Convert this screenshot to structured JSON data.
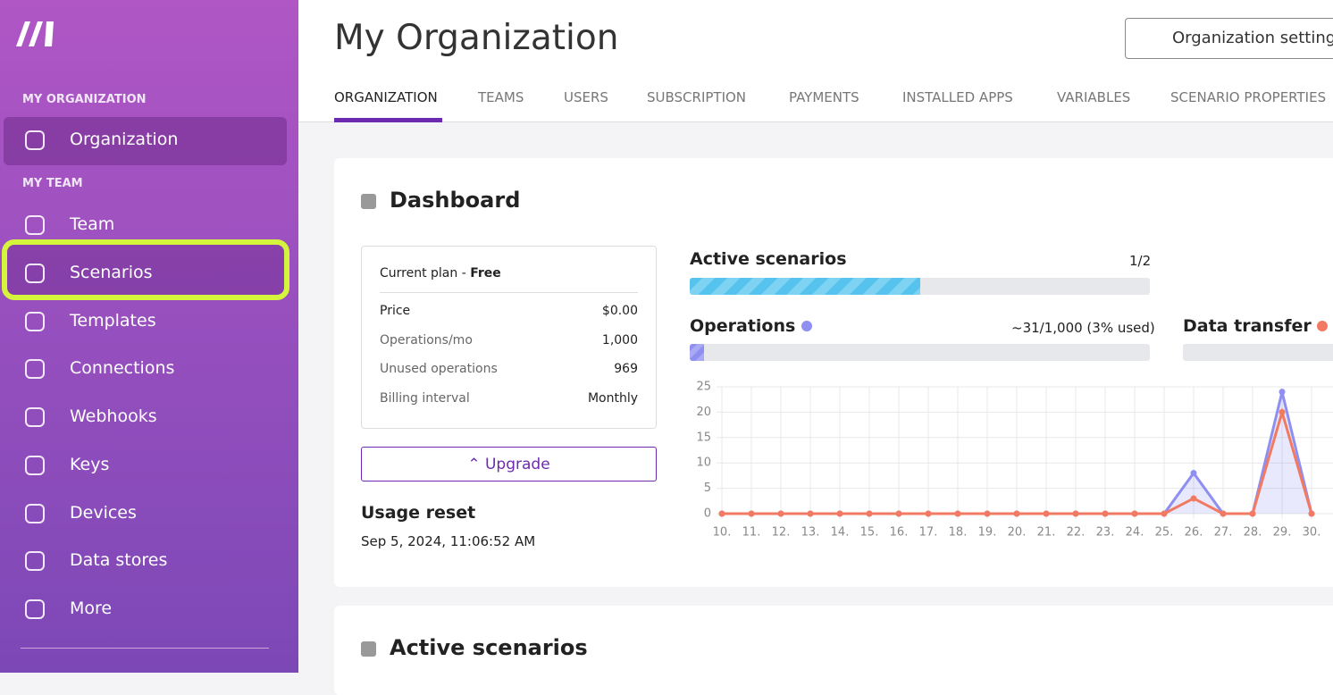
{
  "sidebar": {
    "org_section": "MY ORGANIZATION",
    "org_items": [
      "Organization"
    ],
    "team_section": "MY TEAM",
    "team_items": [
      "Team",
      "Scenarios",
      "Templates",
      "Connections",
      "Webhooks",
      "Keys",
      "Devices",
      "Data stores",
      "More"
    ]
  },
  "header": {
    "title": "My Organization",
    "settings_button": "Organization settings",
    "tabs": [
      "ORGANIZATION",
      "TEAMS",
      "USERS",
      "SUBSCRIPTION",
      "PAYMENTS",
      "INSTALLED APPS",
      "VARIABLES",
      "SCENARIO PROPERTIES"
    ]
  },
  "dashboard": {
    "title": "Dashboard",
    "plan": {
      "label": "Current plan - ",
      "name": "Free",
      "rows": [
        [
          "Price",
          "$0.00"
        ],
        [
          "Operations/mo",
          "1,000"
        ],
        [
          "Unused operations",
          "969"
        ],
        [
          "Billing interval",
          "Monthly"
        ]
      ]
    },
    "upgrade": "Upgrade",
    "usage_reset": "Usage reset",
    "usage_reset_date": "Sep 5, 2024, 11:06:52 AM",
    "active_scenarios": {
      "label": "Active scenarios",
      "value": 1,
      "max": 2,
      "value_label": "1/2"
    },
    "operations": {
      "label": "Operations",
      "value": 31,
      "max": 1000,
      "value_label": "~31/1,000 (3% used)"
    },
    "data_transfer": {
      "label": "Data transfer"
    }
  },
  "chart_data": {
    "type": "line",
    "categories": [
      "10.",
      "11.",
      "12.",
      "13.",
      "14.",
      "15.",
      "16.",
      "17.",
      "18.",
      "19.",
      "20.",
      "21.",
      "22.",
      "23.",
      "24.",
      "25.",
      "26.",
      "27.",
      "28.",
      "29.",
      "30."
    ],
    "series": [
      {
        "name": "Operations",
        "color": "#8e8ff0",
        "values": [
          0,
          0,
          0,
          0,
          0,
          0,
          0,
          0,
          0,
          0,
          0,
          0,
          0,
          0,
          0,
          0,
          8,
          0,
          0,
          24,
          0
        ]
      },
      {
        "name": "Data transfer",
        "color": "#f27a62",
        "values": [
          0,
          0,
          0,
          0,
          0,
          0,
          0,
          0,
          0,
          0,
          0,
          0,
          0,
          0,
          0,
          0,
          3,
          0,
          0,
          20,
          0
        ]
      }
    ],
    "ylim": [
      0,
      25
    ],
    "yticks": [
      0,
      5,
      10,
      15,
      20,
      25
    ],
    "grid": true
  },
  "next_section": {
    "title": "Active scenarios"
  }
}
